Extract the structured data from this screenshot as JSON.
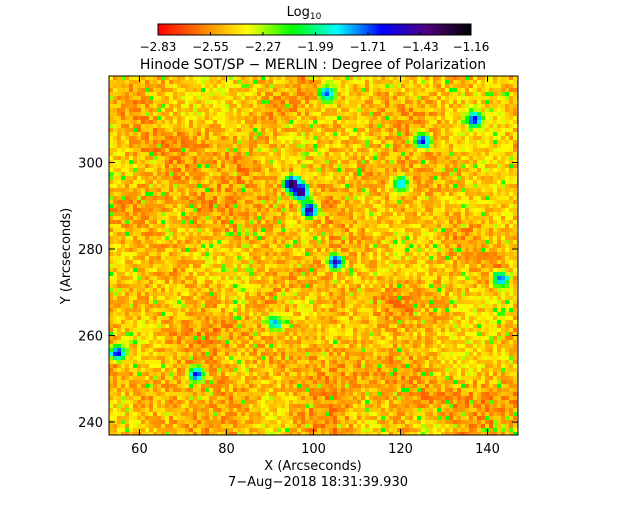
{
  "colorbar": {
    "label_main": "Log",
    "label_sub": "10",
    "tick_labels": [
      "−2.83",
      "−2.55",
      "−2.27",
      "−1.99",
      "−1.71",
      "−1.43",
      "−1.16"
    ],
    "colors": [
      "#ff0000",
      "#ff8000",
      "#ffff00",
      "#00ff00",
      "#00ffff",
      "#0000ff",
      "#500080",
      "#000000"
    ]
  },
  "chart_data": {
    "type": "heatmap",
    "title": "Hinode SOT/SP − MERLIN : Degree of Polarization",
    "xlabel": "X (Arcseconds)",
    "ylabel": "Y (Arcseconds)",
    "xlim": [
      53,
      147
    ],
    "ylim": [
      237,
      320
    ],
    "xticks": [
      60,
      80,
      100,
      120,
      140
    ],
    "yticks": [
      240,
      260,
      280,
      300
    ],
    "colorbar_range": [
      -2.83,
      -1.16
    ],
    "colorbar_ticks": [
      -2.83,
      -2.55,
      -2.27,
      -1.99,
      -1.71,
      -1.43,
      -1.16
    ],
    "footer": "7−Aug−2018 18:31:39.930",
    "features": [
      {
        "x": 95,
        "y": 295,
        "value": -1.2
      },
      {
        "x": 97,
        "y": 293,
        "value": -1.3
      },
      {
        "x": 99,
        "y": 289,
        "value": -1.4
      },
      {
        "x": 105,
        "y": 277,
        "value": -1.5
      },
      {
        "x": 103,
        "y": 316,
        "value": -1.7
      },
      {
        "x": 125,
        "y": 305,
        "value": -1.6
      },
      {
        "x": 137,
        "y": 310,
        "value": -1.6
      },
      {
        "x": 143,
        "y": 273,
        "value": -1.7
      },
      {
        "x": 55,
        "y": 256,
        "value": -1.6
      },
      {
        "x": 73,
        "y": 251,
        "value": -1.6
      },
      {
        "x": 91,
        "y": 263,
        "value": -1.8
      },
      {
        "x": 120,
        "y": 295,
        "value": -1.8
      }
    ]
  }
}
